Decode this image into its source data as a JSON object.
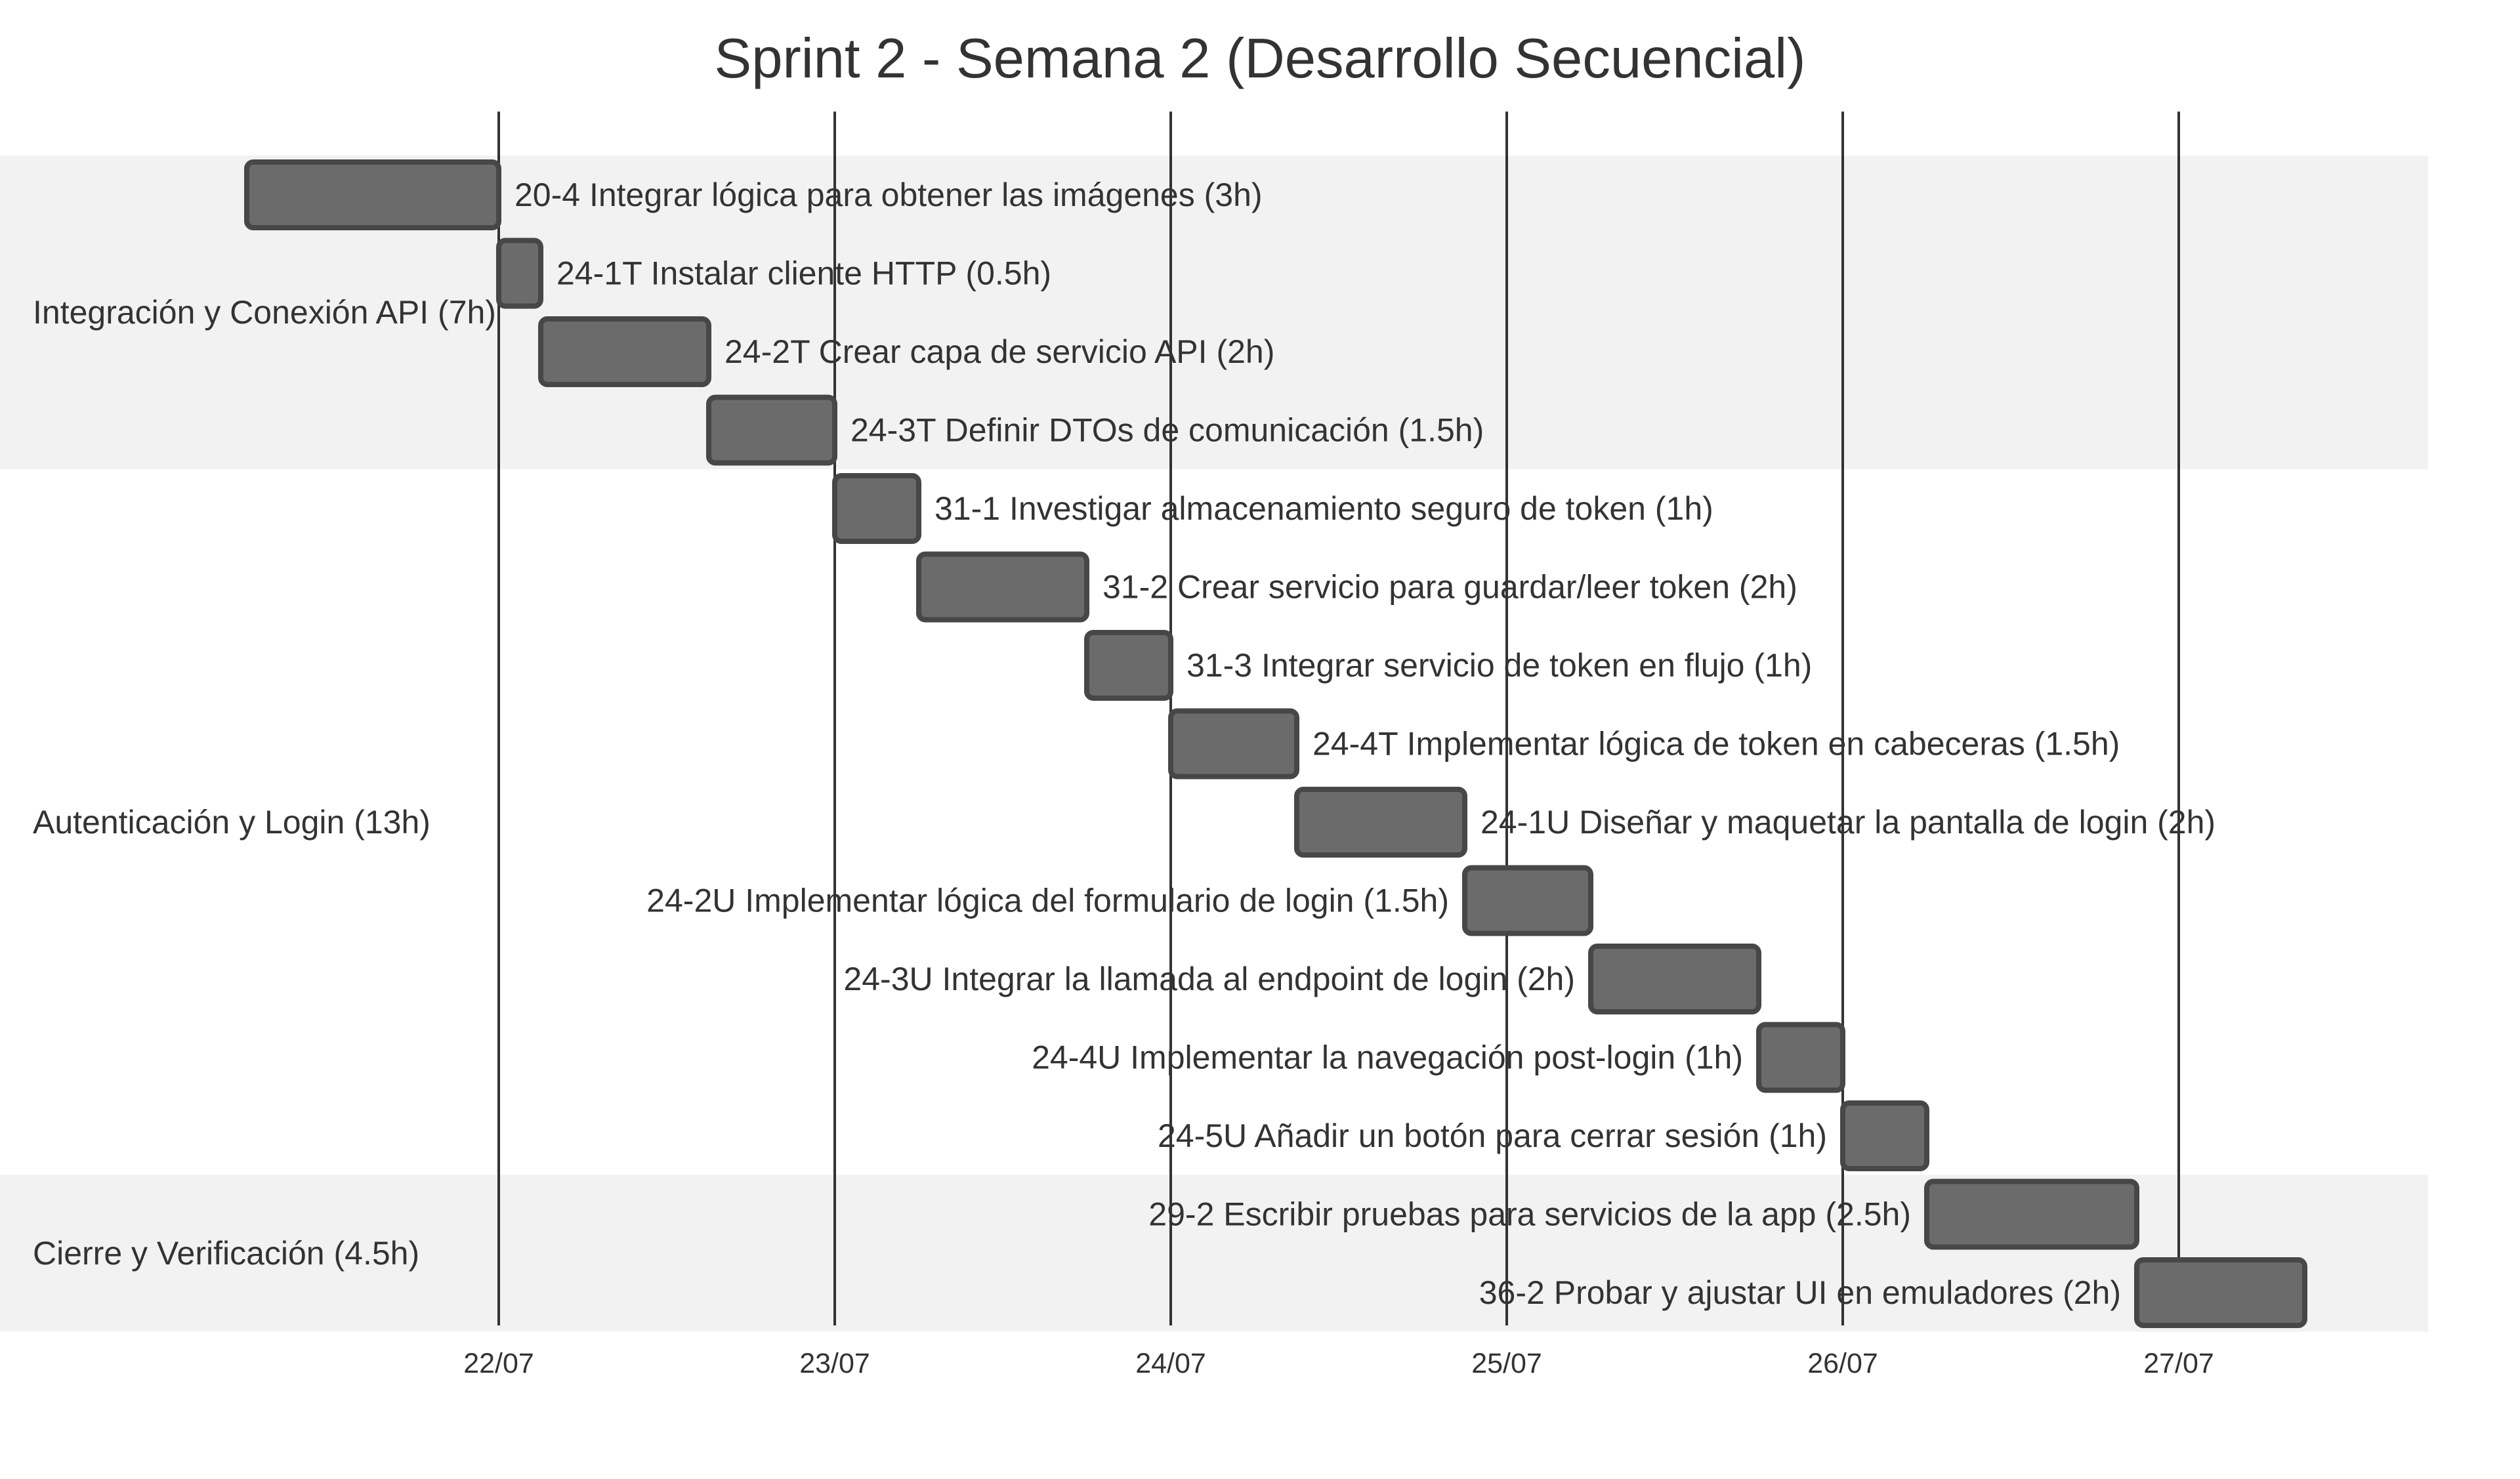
{
  "chart_data": {
    "type": "gantt",
    "title": "Sprint 2 - Semana 2 (Desarrollo Secuencial)",
    "x_axis": {
      "type": "date",
      "ticks": [
        "22/07",
        "23/07",
        "24/07",
        "25/07",
        "26/07",
        "27/07"
      ]
    },
    "colors": {
      "bar_fill": "#6b6b6b",
      "bar_stroke": "#474747",
      "band_fill": "#f2f2f2",
      "grid_line": "#333333",
      "text": "#333333"
    },
    "sections": [
      {
        "name": "Integración y Conexión API (7h)",
        "shaded": true,
        "tasks": [
          {
            "label": "20-4 Integrar lógica para obtener las imágenes (3h)",
            "start": 21.25,
            "end": 22.0
          },
          {
            "label": "24-1T Instalar cliente HTTP (0.5h)",
            "start": 22.0,
            "end": 22.125
          },
          {
            "label": "24-2T Crear capa de servicio API (2h)",
            "start": 22.125,
            "end": 22.625
          },
          {
            "label": "24-3T Definir DTOs de comunicación (1.5h)",
            "start": 22.625,
            "end": 23.0
          }
        ]
      },
      {
        "name": "Autenticación y Login (13h)",
        "shaded": false,
        "tasks": [
          {
            "label": "31-1 Investigar almacenamiento seguro de token (1h)",
            "start": 23.0,
            "end": 23.25
          },
          {
            "label": "31-2 Crear servicio para guardar/leer token (2h)",
            "start": 23.25,
            "end": 23.75
          },
          {
            "label": "31-3 Integrar servicio de token en flujo (1h)",
            "start": 23.75,
            "end": 24.0
          },
          {
            "label": "24-4T Implementar lógica de token en cabeceras (1.5h)",
            "start": 24.0,
            "end": 24.375
          },
          {
            "label": "24-1U Diseñar y maquetar la pantalla de login (2h)",
            "start": 24.375,
            "end": 24.875
          },
          {
            "label": "24-2U Implementar lógica del formulario de login (1.5h)",
            "start": 24.875,
            "end": 25.25
          },
          {
            "label": "24-3U Integrar la llamada al endpoint de login (2h)",
            "start": 25.25,
            "end": 25.75
          },
          {
            "label": "24-4U Implementar la navegación post-login (1h)",
            "start": 25.75,
            "end": 26.0
          },
          {
            "label": "24-5U Añadir un botón para cerrar sesión (1h)",
            "start": 26.0,
            "end": 26.25
          }
        ]
      },
      {
        "name": "Cierre y Verificación (4.5h)",
        "shaded": true,
        "tasks": [
          {
            "label": "29-2 Escribir pruebas para servicios de la app (2.5h)",
            "start": 26.25,
            "end": 26.875
          },
          {
            "label": "36-2 Probar y ajustar UI en emuladores (2h)",
            "start": 26.875,
            "end": 27.375
          }
        ]
      }
    ]
  }
}
